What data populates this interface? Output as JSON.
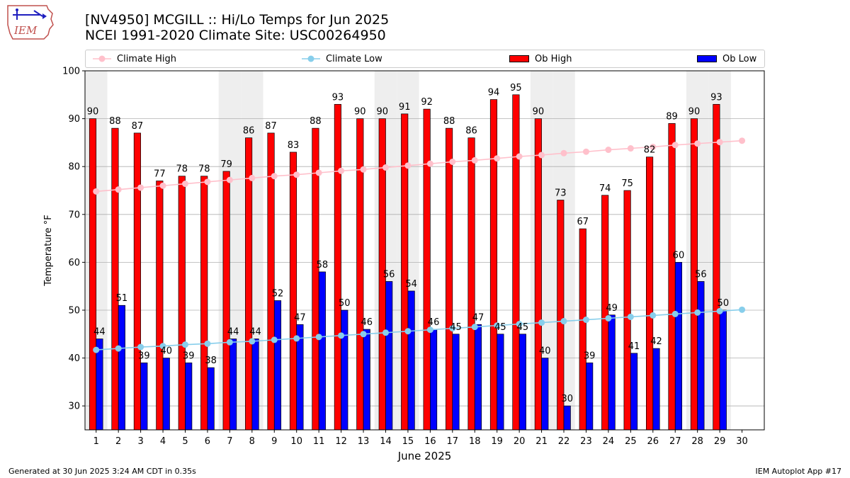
{
  "header": {
    "title_line1": "[NV4950] MCGILL :: Hi/Lo Temps for Jun 2025",
    "title_line2": "NCEI 1991-2020 Climate Site: USC00264950",
    "logo_text": "IEM"
  },
  "footer": {
    "generated": "Generated at 30 Jun 2025 3:24 AM CDT in 0.35s",
    "app": "IEM Autoplot App #17"
  },
  "colors": {
    "ob_high": "#ff0000",
    "ob_low": "#0000ff",
    "climate_high": "#ffc0cb",
    "climate_low": "#87ceeb",
    "weekend_shade": "#eeeeee",
    "grid": "#b0b0b0"
  },
  "chart_data": {
    "type": "bar",
    "xlabel": "June 2025",
    "ylabel": "Temperature °F",
    "ylim": [
      25,
      100
    ],
    "yticks": [
      30,
      40,
      50,
      60,
      70,
      80,
      90,
      100
    ],
    "grid": true,
    "legend_position": "top",
    "categories": [
      "1",
      "2",
      "3",
      "4",
      "5",
      "6",
      "7",
      "8",
      "9",
      "10",
      "11",
      "12",
      "13",
      "14",
      "15",
      "16",
      "17",
      "18",
      "19",
      "20",
      "21",
      "22",
      "23",
      "24",
      "25",
      "26",
      "27",
      "28",
      "29",
      "30"
    ],
    "weekend_shaded_days": [
      1,
      7,
      8,
      14,
      15,
      21,
      22,
      28,
      29
    ],
    "series": [
      {
        "name": "Ob High",
        "kind": "bar",
        "values": [
          90,
          88,
          87,
          77,
          78,
          78,
          79,
          86,
          87,
          83,
          88,
          93,
          90,
          90,
          91,
          92,
          88,
          86,
          94,
          95,
          90,
          73,
          67,
          74,
          75,
          82,
          89,
          90,
          93,
          null
        ]
      },
      {
        "name": "Ob Low",
        "kind": "bar",
        "values": [
          44,
          51,
          39,
          40,
          39,
          38,
          44,
          44,
          52,
          47,
          58,
          50,
          46,
          56,
          54,
          46,
          45,
          47,
          45,
          45,
          40,
          30,
          39,
          49,
          41,
          42,
          60,
          56,
          50,
          null
        ]
      },
      {
        "name": "Climate High",
        "kind": "line",
        "values": [
          74.8,
          75.2,
          75.6,
          76.0,
          76.4,
          76.8,
          77.2,
          77.6,
          78.0,
          78.3,
          78.7,
          79.1,
          79.4,
          79.8,
          80.2,
          80.6,
          81.0,
          81.3,
          81.7,
          82.1,
          82.4,
          82.8,
          83.1,
          83.5,
          83.8,
          84.1,
          84.5,
          84.8,
          85.1,
          85.4
        ]
      },
      {
        "name": "Climate Low",
        "kind": "line",
        "values": [
          41.7,
          42.0,
          42.3,
          42.5,
          42.8,
          43.0,
          43.3,
          43.5,
          43.8,
          44.1,
          44.4,
          44.7,
          45.0,
          45.3,
          45.6,
          45.9,
          46.2,
          46.5,
          46.8,
          47.1,
          47.4,
          47.7,
          48.0,
          48.3,
          48.6,
          48.9,
          49.2,
          49.5,
          49.8,
          50.1
        ]
      }
    ]
  }
}
